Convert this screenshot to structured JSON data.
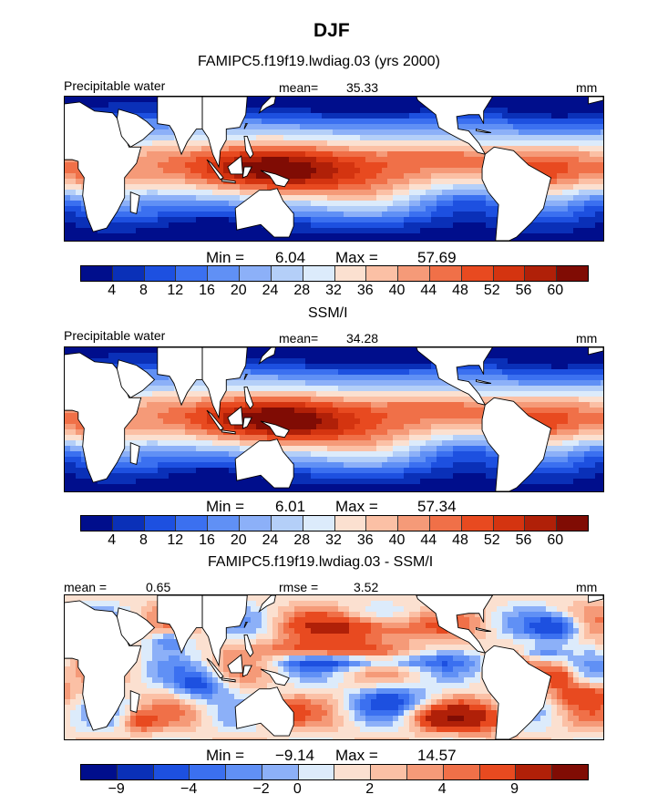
{
  "figure": {
    "season_title": "DJF",
    "panels": [
      {
        "id": "model",
        "title": "FAMIPC5.f19f19.lwdiag.03 (yrs 2000)",
        "left_label": "Precipitable water",
        "stat_label": "mean=",
        "stat_value": "35.33",
        "units": "mm",
        "min_label": "Min =",
        "min_value": "6.04",
        "max_label": "Max =",
        "max_value": "57.69",
        "colorbar_ticks": [
          "4",
          "8",
          "12",
          "16",
          "20",
          "24",
          "28",
          "32",
          "36",
          "40",
          "44",
          "48",
          "52",
          "56",
          "60"
        ]
      },
      {
        "id": "obs",
        "title": "SSM/I",
        "left_label": "Precipitable water",
        "stat_label": "mean=",
        "stat_value": "34.28",
        "units": "mm",
        "min_label": "Min =",
        "min_value": "6.01",
        "max_label": "Max =",
        "max_value": "57.34",
        "colorbar_ticks": [
          "4",
          "8",
          "12",
          "16",
          "20",
          "24",
          "28",
          "32",
          "36",
          "40",
          "44",
          "48",
          "52",
          "56",
          "60"
        ]
      },
      {
        "id": "diff",
        "title": "FAMIPC5.f19f19.lwdiag.03 - SSM/I",
        "left_label": "mean =",
        "left_value": "0.65",
        "stat_label": "rmse =",
        "stat_value": "3.52",
        "units": "mm",
        "min_label": "Min =",
        "min_value": "−9.14",
        "max_label": "Max =",
        "max_value": "14.57",
        "colorbar_ticks": [
          "−9",
          "−4",
          "−2",
          "0",
          "2",
          "4",
          "9"
        ]
      }
    ]
  },
  "chart_data": [
    {
      "type": "heatmap",
      "title": "FAMIPC5.f19f19.lwdiag.03 (yrs 2000)",
      "variable": "Precipitable water",
      "units": "mm",
      "season": "DJF",
      "mean": 35.33,
      "min": 6.04,
      "max": 57.69,
      "contour_levels": [
        4,
        8,
        12,
        16,
        20,
        24,
        28,
        32,
        36,
        40,
        44,
        48,
        52,
        56,
        60
      ],
      "colors": [
        "#000e8c",
        "#0a30b8",
        "#1d50e0",
        "#3b70f0",
        "#6090f5",
        "#8cb0f8",
        "#b4cff8",
        "#dcebfb",
        "#fbe0d0",
        "#fbc0a5",
        "#f59a78",
        "#f07048",
        "#e84a20",
        "#d43410",
        "#b02008",
        "#800c04"
      ],
      "features": {
        "warm_pool": [
          130,
          0
        ],
        "itcz_lat": 6,
        "spcz_end": [
          210,
          -25
        ],
        "subtropical_jet_lat": 30
      }
    },
    {
      "type": "heatmap",
      "title": "SSM/I",
      "variable": "Precipitable water",
      "units": "mm",
      "season": "DJF",
      "mean": 34.28,
      "min": 6.01,
      "max": 57.34,
      "contour_levels": [
        4,
        8,
        12,
        16,
        20,
        24,
        28,
        32,
        36,
        40,
        44,
        48,
        52,
        56,
        60
      ],
      "colors": [
        "#000e8c",
        "#0a30b8",
        "#1d50e0",
        "#3b70f0",
        "#6090f5",
        "#8cb0f8",
        "#b4cff8",
        "#dcebfb",
        "#fbe0d0",
        "#fbc0a5",
        "#f59a78",
        "#f07048",
        "#e84a20",
        "#d43410",
        "#b02008",
        "#800c04"
      ]
    },
    {
      "type": "heatmap",
      "title": "FAMIPC5.f19f19.lwdiag.03 - SSM/I",
      "variable": "Precipitable water difference",
      "units": "mm",
      "season": "DJF",
      "mean": 0.65,
      "rmse": 3.52,
      "min": -9.14,
      "max": 14.57,
      "contour_levels": [
        -9,
        -6,
        -4,
        -3,
        -2,
        -1,
        0,
        1,
        2,
        3,
        4,
        6,
        9
      ],
      "colors": [
        "#000e8c",
        "#0a30b8",
        "#1d50e0",
        "#3b70f0",
        "#6090f5",
        "#8cb0f8",
        "#dcebfb",
        "#fbe0d0",
        "#fbc0a5",
        "#f59a78",
        "#f07048",
        "#e84a20",
        "#b02008",
        "#800c04"
      ]
    }
  ]
}
